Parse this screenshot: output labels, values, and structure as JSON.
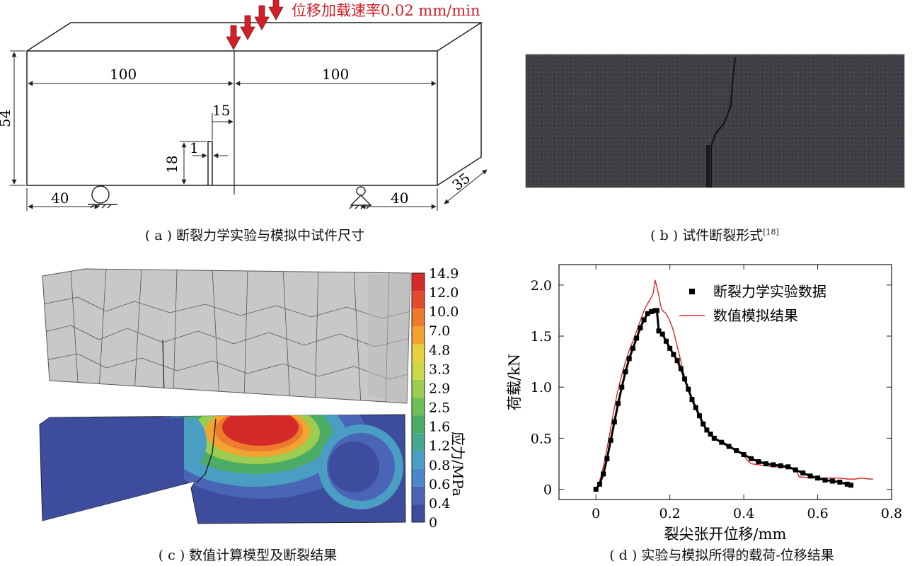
{
  "panel_a": {
    "load_label": "位移加载速率0.02 mm/min",
    "dim_left_span": "100",
    "dim_right_span": "100",
    "dim_height": "54",
    "dim_offset": "15",
    "dim_notch_depth": "18",
    "dim_notch_width": "1",
    "dim_support_left": "40",
    "dim_support_right": "40",
    "dim_thickness": "35",
    "caption": "( a ) 断裂力学实验与模拟中试件尺寸"
  },
  "panel_b": {
    "caption": "( b ) 试件断裂形式",
    "caption_ref": "[18]"
  },
  "panel_c": {
    "colorbar_title": "应力/MPa",
    "colorbar_ticks": [
      "14.9",
      "12.0",
      "10.0",
      "7.0",
      "4.8",
      "3.3",
      "2.9",
      "2.5",
      "1.6",
      "1.2",
      "0.8",
      "0.6",
      "0.4",
      "0"
    ],
    "colorbar_colors": [
      "#d52a2a",
      "#e34b30",
      "#ee7b2d",
      "#f2a332",
      "#e8cf3b",
      "#c9d94a",
      "#9ccd50",
      "#6ebf58",
      "#4cab64",
      "#45a88e",
      "#4a9ec3",
      "#4a86c9",
      "#4a64b6",
      "#3d4c9c"
    ],
    "caption": "( c ) 数值计算模型及断裂结果"
  },
  "chart_data": {
    "type": "line",
    "xlabel": "裂尖张开位移/mm",
    "ylabel": "荷载/kN",
    "xlim": [
      -0.1,
      0.8
    ],
    "ylim": [
      -0.1,
      2.2
    ],
    "xticks": [
      "0",
      "0.2",
      "0.4",
      "0.6",
      "0.8"
    ],
    "yticks": [
      "0",
      "0.5",
      "1.0",
      "1.5",
      "2.0"
    ],
    "legend_position": "top-right",
    "series": [
      {
        "name": "断裂力学实验数据",
        "style": "square-markers",
        "color": "#000000",
        "x": [
          0.0,
          0.01,
          0.02,
          0.03,
          0.04,
          0.05,
          0.06,
          0.07,
          0.08,
          0.09,
          0.1,
          0.11,
          0.12,
          0.13,
          0.14,
          0.15,
          0.16,
          0.165,
          0.17,
          0.18,
          0.19,
          0.2,
          0.21,
          0.22,
          0.23,
          0.24,
          0.25,
          0.26,
          0.27,
          0.28,
          0.29,
          0.3,
          0.31,
          0.32,
          0.34,
          0.36,
          0.38,
          0.4,
          0.42,
          0.44,
          0.46,
          0.48,
          0.5,
          0.52,
          0.54,
          0.56,
          0.58,
          0.6,
          0.62,
          0.64,
          0.66,
          0.68,
          0.69
        ],
        "y": [
          0.0,
          0.05,
          0.15,
          0.3,
          0.48,
          0.66,
          0.84,
          1.0,
          1.15,
          1.28,
          1.38,
          1.48,
          1.58,
          1.66,
          1.72,
          1.74,
          1.75,
          1.75,
          1.55,
          1.52,
          1.45,
          1.38,
          1.32,
          1.26,
          1.18,
          1.08,
          0.98,
          0.88,
          0.8,
          0.72,
          0.64,
          0.58,
          0.54,
          0.5,
          0.46,
          0.42,
          0.38,
          0.34,
          0.3,
          0.27,
          0.25,
          0.24,
          0.23,
          0.22,
          0.19,
          0.16,
          0.13,
          0.11,
          0.09,
          0.08,
          0.07,
          0.05,
          0.04
        ]
      },
      {
        "name": "数值模拟结果",
        "style": "line",
        "color": "#d62a2a",
        "x": [
          0.0,
          0.01,
          0.02,
          0.03,
          0.04,
          0.05,
          0.06,
          0.07,
          0.08,
          0.09,
          0.1,
          0.11,
          0.12,
          0.13,
          0.14,
          0.15,
          0.155,
          0.16,
          0.165,
          0.17,
          0.175,
          0.18,
          0.19,
          0.2,
          0.21,
          0.22,
          0.23,
          0.24,
          0.25,
          0.26,
          0.27,
          0.28,
          0.29,
          0.3,
          0.31,
          0.32,
          0.34,
          0.36,
          0.38,
          0.4,
          0.41,
          0.42,
          0.44,
          0.46,
          0.48,
          0.5,
          0.52,
          0.54,
          0.55,
          0.56,
          0.58,
          0.6,
          0.62,
          0.64,
          0.66,
          0.68,
          0.7,
          0.72,
          0.74,
          0.75
        ],
        "y": [
          0.0,
          0.08,
          0.22,
          0.4,
          0.6,
          0.8,
          0.98,
          1.12,
          1.25,
          1.36,
          1.45,
          1.55,
          1.65,
          1.75,
          1.82,
          1.88,
          1.92,
          2.05,
          1.98,
          1.9,
          1.8,
          1.75,
          1.72,
          1.65,
          1.55,
          1.4,
          1.25,
          1.1,
          0.98,
          0.88,
          0.8,
          0.72,
          0.64,
          0.58,
          0.55,
          0.5,
          0.47,
          0.43,
          0.38,
          0.33,
          0.28,
          0.25,
          0.24,
          0.23,
          0.22,
          0.22,
          0.21,
          0.2,
          0.12,
          0.12,
          0.11,
          0.11,
          0.11,
          0.11,
          0.11,
          0.1,
          0.1,
          0.11,
          0.1,
          0.1
        ]
      }
    ],
    "caption": "( d ) 实验与模拟所得的载荷-位移结果"
  }
}
